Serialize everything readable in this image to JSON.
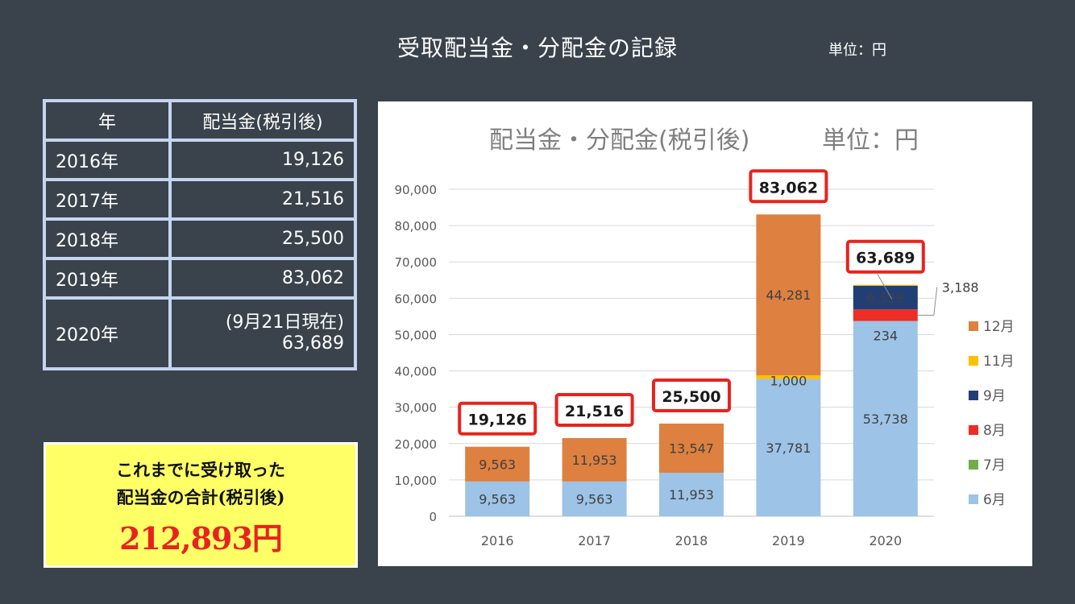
{
  "page": {
    "title": "受取配当金・分配金の記録",
    "unit": "単位：円"
  },
  "table": {
    "headers": [
      "年",
      "配当金(税引後)"
    ],
    "rows": [
      {
        "year": "2016年",
        "amount": "19,126"
      },
      {
        "year": "2017年",
        "amount": "21,516"
      },
      {
        "year": "2018年",
        "amount": "25,500"
      },
      {
        "year": "2019年",
        "amount": "83,062"
      },
      {
        "year": "2020年",
        "note": "(9月21日現在)",
        "amount": "63,689"
      }
    ]
  },
  "total": {
    "line1": "これまでに受け取った",
    "line2": "配当金の合計(税引後)",
    "amount": "212,893円"
  },
  "chart_data": {
    "type": "bar",
    "stacked": true,
    "title": "配当金・分配金(税引後)",
    "unit_label": "単位：円",
    "categories": [
      "2016",
      "2017",
      "2018",
      "2019",
      "2020"
    ],
    "ylim": [
      0,
      90000
    ],
    "yticks": [
      0,
      10000,
      20000,
      30000,
      40000,
      50000,
      60000,
      70000,
      80000,
      90000
    ],
    "ytick_labels": [
      "0",
      "10,000",
      "20,000",
      "30,000",
      "40,000",
      "50,000",
      "60,000",
      "70,000",
      "80,000",
      "90,000"
    ],
    "grid": true,
    "legend_position": "right",
    "series": [
      {
        "name": "6月",
        "color": "#9dc3e6",
        "values": [
          9563,
          9563,
          11953,
          37781,
          53738
        ],
        "labels": [
          "9,563",
          "9,563",
          "11,953",
          "37,781",
          "53,738"
        ]
      },
      {
        "name": "7月",
        "color": "#70ad47",
        "values": [
          0,
          0,
          0,
          0,
          0
        ],
        "labels": [
          "",
          "",
          "",
          "",
          ""
        ]
      },
      {
        "name": "8月",
        "color": "#ee2d24",
        "values": [
          0,
          0,
          0,
          0,
          3188
        ],
        "labels": [
          "",
          "",
          "",
          "",
          "3,188"
        ]
      },
      {
        "name": "9月",
        "color": "#223f75",
        "values": [
          0,
          0,
          0,
          0,
          6529
        ],
        "labels": [
          "",
          "",
          "",
          "",
          "6,529"
        ]
      },
      {
        "name": "11月",
        "color": "#ffc000",
        "values": [
          0,
          0,
          0,
          1000,
          234
        ],
        "labels": [
          "",
          "",
          "",
          "1,000",
          "234"
        ]
      },
      {
        "name": "12月",
        "color": "#dd8040",
        "values": [
          9563,
          11953,
          13547,
          44281,
          0
        ],
        "labels": [
          "9,563",
          "11,953",
          "13,547",
          "44,281",
          ""
        ]
      }
    ],
    "totals": [
      "19,126",
      "21,516",
      "25,500",
      "83,062",
      "63,689"
    ],
    "legend_order": [
      "12月",
      "11月",
      "9月",
      "8月",
      "7月",
      "6月"
    ],
    "total_box_color": "#e8231f"
  }
}
